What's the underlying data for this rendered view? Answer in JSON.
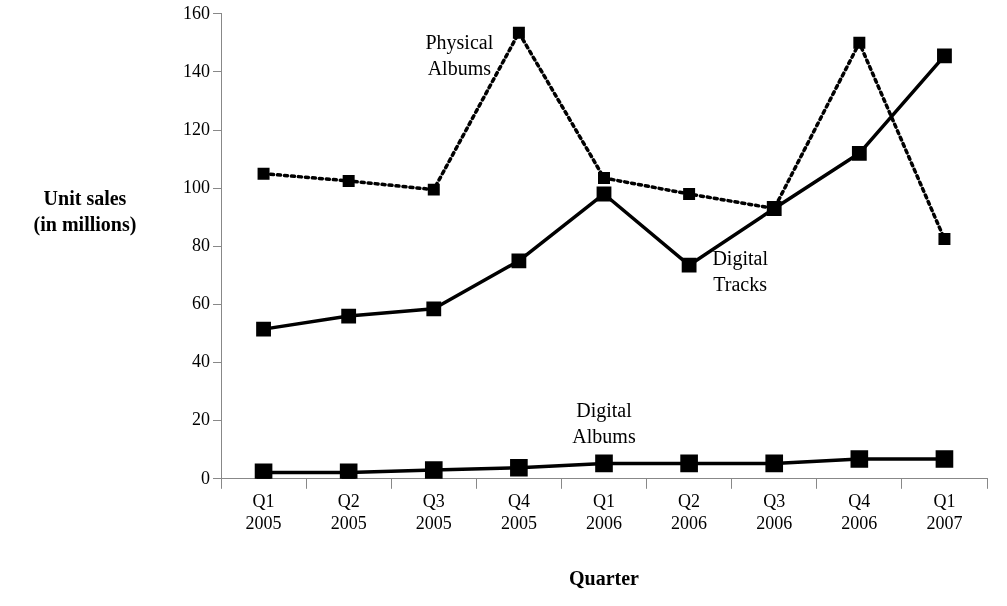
{
  "chart_data": {
    "type": "line",
    "xlabel": "Quarter",
    "ylabel": "Unit sales (in millions)",
    "categories": [
      "Q1 2005",
      "Q2 2005",
      "Q3 2005",
      "Q4 2005",
      "Q1 2006",
      "Q2 2006",
      "Q3 2006",
      "Q4 2006",
      "Q1 2007"
    ],
    "series": [
      {
        "name": "Physical Albums",
        "color": "#000000",
        "line_style": "dotted",
        "values": [
          105,
          102.5,
          99.5,
          153.5,
          103.5,
          98,
          93,
          150,
          82.5
        ]
      },
      {
        "name": "Digital Tracks",
        "color": "#000000",
        "line_style": "solid",
        "values": [
          51.5,
          56,
          58.5,
          75,
          98,
          73.5,
          93,
          112,
          145.5
        ]
      },
      {
        "name": "Digital Albums",
        "color": "#000000",
        "line_style": "solid",
        "values": [
          2.2,
          2.2,
          3,
          3.8,
          5.3,
          5.3,
          5.3,
          6.8,
          6.8
        ]
      }
    ],
    "ylim": [
      0,
      160
    ],
    "yticks": [
      0,
      20,
      40,
      60,
      80,
      100,
      120,
      140,
      160
    ],
    "grid": false,
    "legend": false,
    "marker": "square"
  }
}
